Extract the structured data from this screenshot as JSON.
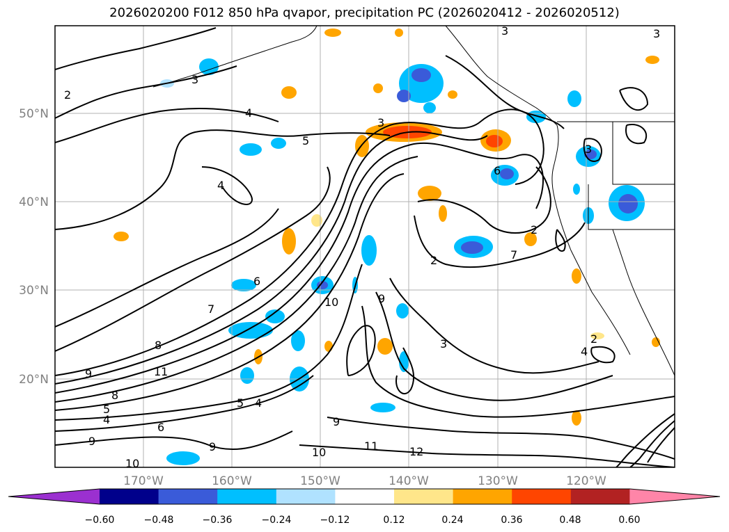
{
  "title": "2026020200 F012 850 hPa qvapor, precipitation PC (2026020412 - 2026020512)",
  "lat_labels": [
    "50°N",
    "40°N",
    "30°N",
    "20°N"
  ],
  "lon_labels": [
    "170°W",
    "160°W",
    "150°W",
    "140°W",
    "130°W",
    "120°W"
  ],
  "contour_labels": [
    "3",
    "3",
    "3",
    "2",
    "4",
    "5",
    "4",
    "3",
    "6",
    "3",
    "2",
    "2",
    "7",
    "6",
    "7",
    "8",
    "10",
    "9",
    "11",
    "9",
    "8",
    "5",
    "4",
    "9",
    "6",
    "5",
    "4",
    "9",
    "10",
    "11",
    "12",
    "3",
    "2",
    "4",
    "9",
    "10"
  ],
  "colorbar": {
    "ticks": [
      "−0.60",
      "−0.48",
      "−0.36",
      "−0.24",
      "−0.12",
      "0.12",
      "0.24",
      "0.36",
      "0.48",
      "0.60"
    ],
    "colors": [
      "#9b30d0",
      "#00008b",
      "#3a5bd9",
      "#00bfff",
      "#b0e2ff",
      "#ffffff",
      "#ffe68a",
      "#ffa500",
      "#ff4500",
      "#b22222",
      "#ff85a8"
    ]
  },
  "chart_data": {
    "type": "contour_map",
    "title": "2026020200 F012 850 hPa qvapor, precipitation PC (2026020412 - 2026020512)",
    "field_lines": "850 hPa water vapor mixing ratio (g/kg)",
    "field_fill": "precipitation PC",
    "lon_range": [
      -180,
      -110
    ],
    "lat_range": [
      10,
      60
    ],
    "contour_levels": [
      2,
      3,
      4,
      5,
      6,
      7,
      8,
      9,
      10,
      11,
      12
    ],
    "fill_levels": [
      -0.6,
      -0.48,
      -0.36,
      -0.24,
      -0.12,
      0.12,
      0.24,
      0.36,
      0.48,
      0.6
    ]
  }
}
